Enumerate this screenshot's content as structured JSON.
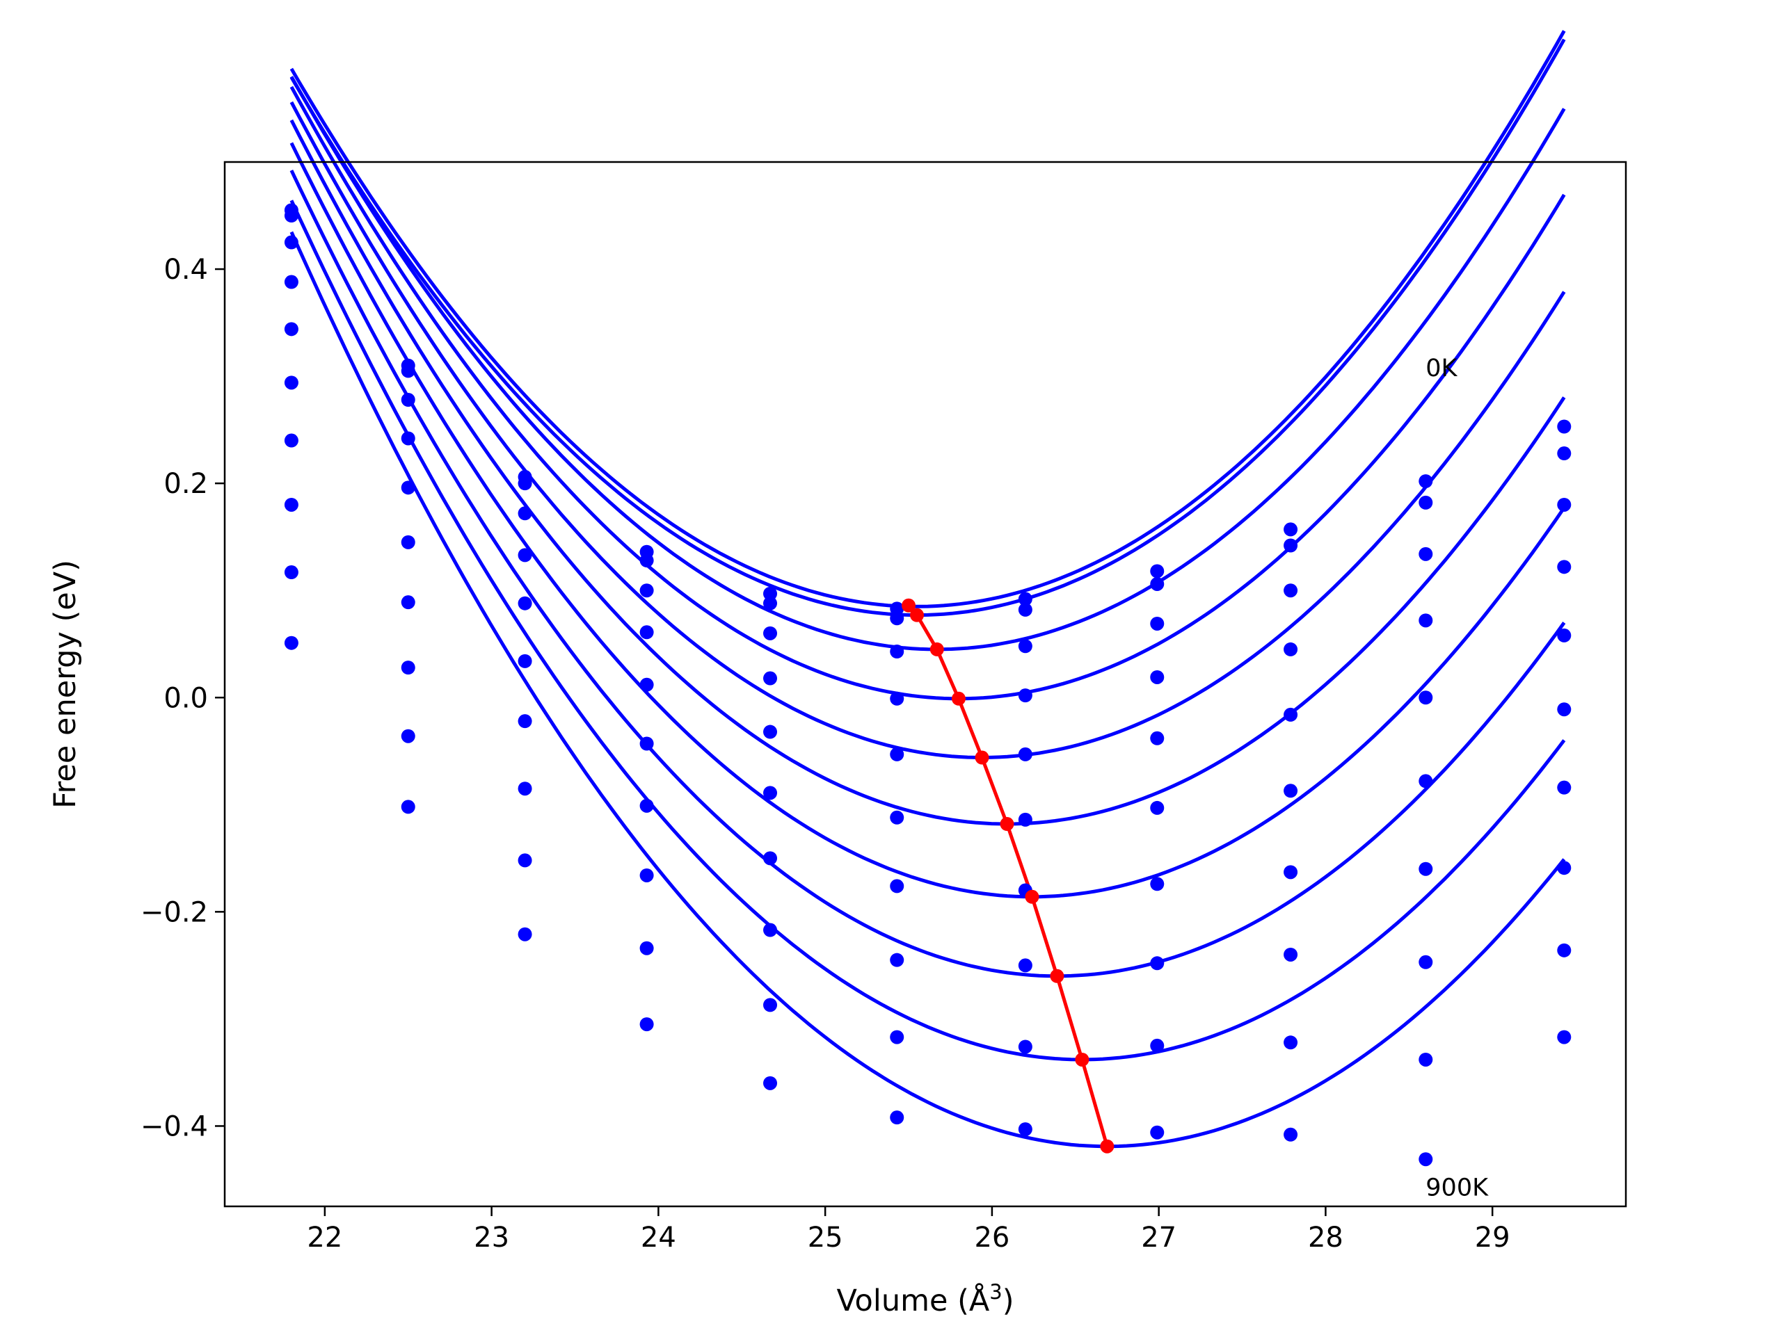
{
  "chart_data": {
    "type": "scatter",
    "xlabel": "Volume (Å",
    "xlabel_superscript": "3",
    "xlabel_close": ")",
    "ylabel": "Free energy (eV)",
    "xlim": [
      21.4,
      29.8
    ],
    "ylim": [
      -0.475,
      0.5
    ],
    "xticks": [
      22,
      23,
      24,
      25,
      26,
      27,
      28,
      29
    ],
    "xtick_labels": [
      "22",
      "23",
      "24",
      "25",
      "26",
      "27",
      "28",
      "29"
    ],
    "yticks": [
      0.4,
      0.2,
      0.0,
      -0.2,
      -0.4
    ],
    "ytick_labels": [
      "0.4",
      "0.2",
      "0.0",
      "−0.2",
      "−0.4"
    ],
    "grid": false,
    "colors": {
      "points": "#0000ff",
      "curves": "#0000ff",
      "minima": "#ff0000"
    },
    "annotations": [
      {
        "text": "0K",
        "x": 28.6,
        "y": 0.3
      },
      {
        "text": "900K",
        "x": 28.6,
        "y": -0.465
      }
    ],
    "volumes": [
      21.8,
      22.5,
      23.2,
      23.93,
      24.67,
      25.43,
      26.2,
      26.99,
      27.79,
      28.6,
      29.43
    ],
    "series": [
      {
        "values": [
          0.455,
          0.31,
          0.206,
          0.136,
          0.097,
          0.083,
          0.092,
          0.118,
          0.157,
          0.202,
          0.253
        ],
        "fit": {
          "a": 0.0357,
          "V0": 25.55,
          "E0": 0.085,
          "k": 0.065
        }
      },
      {
        "values": [
          0.45,
          0.305,
          0.2,
          0.128,
          0.088,
          0.074,
          0.082,
          0.106,
          0.142,
          0.182,
          0.228
        ],
        "fit": {
          "a": 0.0357,
          "V0": 25.55,
          "E0": 0.077,
          "k": 0.065
        }
      },
      {
        "values": [
          0.425,
          0.278,
          0.172,
          0.1,
          0.06,
          0.043,
          0.048,
          0.069,
          0.1,
          0.134,
          0.18
        ],
        "fit": {
          "a": 0.0357,
          "V0": 25.67,
          "E0": 0.045,
          "k": 0.065
        }
      },
      {
        "values": [
          0.388,
          0.242,
          0.133,
          0.061,
          0.018,
          -0.001,
          0.002,
          0.019,
          0.045,
          0.072,
          0.122
        ],
        "fit": {
          "a": 0.0357,
          "V0": 25.8,
          "E0": -0.001,
          "k": 0.065
        }
      },
      {
        "values": [
          0.344,
          0.196,
          0.088,
          0.012,
          -0.032,
          -0.053,
          -0.053,
          -0.038,
          -0.016,
          0.0,
          0.058
        ],
        "fit": {
          "a": 0.0357,
          "V0": 25.94,
          "E0": -0.056,
          "k": 0.065
        }
      },
      {
        "values": [
          0.294,
          0.145,
          0.034,
          -0.043,
          -0.089,
          -0.112,
          -0.114,
          -0.103,
          -0.087,
          -0.078,
          -0.011
        ],
        "fit": {
          "a": 0.0357,
          "V0": 26.09,
          "E0": -0.118,
          "k": 0.065
        }
      },
      {
        "values": [
          0.24,
          0.089,
          -0.022,
          -0.101,
          -0.15,
          -0.176,
          -0.18,
          -0.174,
          -0.163,
          -0.16,
          -0.084
        ],
        "fit": {
          "a": 0.0357,
          "V0": 26.24,
          "E0": -0.186,
          "k": 0.065
        }
      },
      {
        "values": [
          0.18,
          0.028,
          -0.085,
          -0.166,
          -0.217,
          -0.245,
          -0.25,
          -0.248,
          -0.24,
          -0.247,
          -0.159
        ],
        "fit": {
          "a": 0.0357,
          "V0": 26.39,
          "E0": -0.26,
          "k": 0.065
        }
      },
      {
        "values": [
          0.117,
          -0.036,
          -0.152,
          -0.234,
          -0.287,
          -0.317,
          -0.326,
          -0.325,
          -0.322,
          -0.338,
          -0.236
        ],
        "fit": {
          "a": 0.0357,
          "V0": 26.54,
          "E0": -0.338,
          "k": 0.065
        }
      },
      {
        "values": [
          0.051,
          -0.102,
          -0.221,
          -0.305,
          -0.36,
          -0.392,
          -0.403,
          -0.406,
          -0.408,
          -0.431,
          -0.317
        ],
        "fit": {
          "a": 0.0357,
          "V0": 26.69,
          "E0": -0.419,
          "k": 0.065
        }
      }
    ],
    "minima": {
      "x": [
        25.5,
        25.55,
        25.67,
        25.8,
        25.94,
        26.09,
        26.24,
        26.39,
        26.54,
        26.69
      ],
      "y": [
        0.086,
        0.077,
        0.045,
        -0.001,
        -0.056,
        -0.118,
        -0.186,
        -0.26,
        -0.338,
        -0.419
      ]
    },
    "curve_x_range": [
      21.8,
      29.43
    ]
  }
}
